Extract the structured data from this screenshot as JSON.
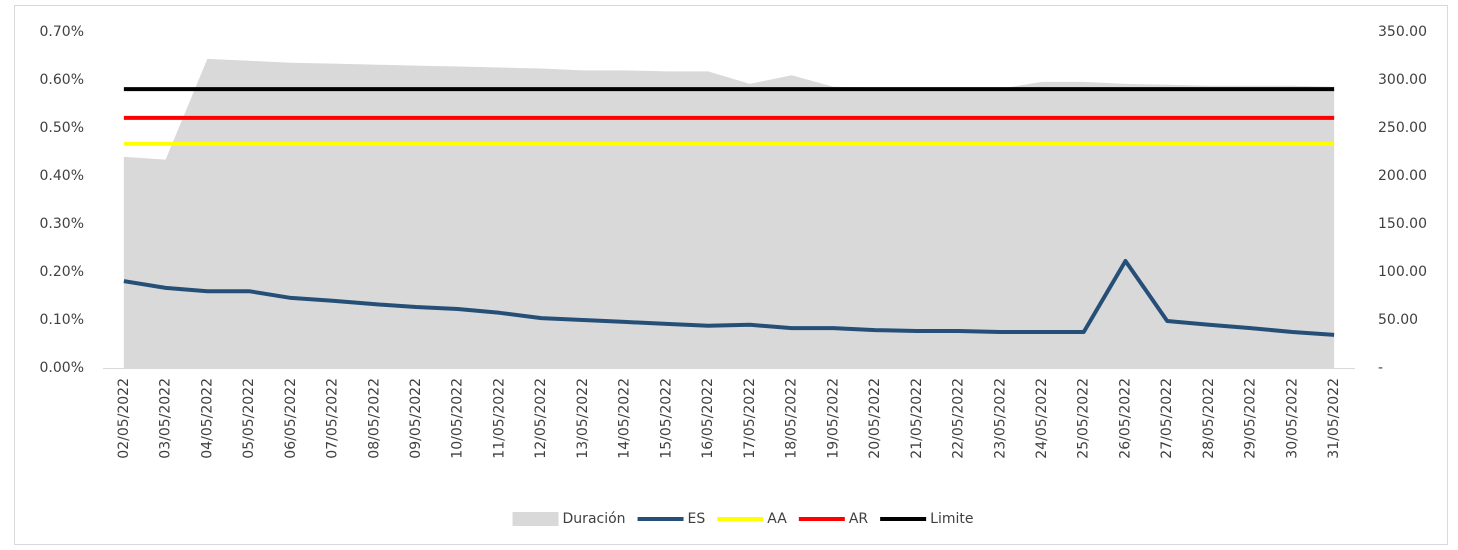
{
  "chart_data": {
    "type": "line",
    "categories": [
      "02/05/2022",
      "03/05/2022",
      "04/05/2022",
      "05/05/2022",
      "06/05/2022",
      "07/05/2022",
      "08/05/2022",
      "09/05/2022",
      "10/05/2022",
      "11/05/2022",
      "12/05/2022",
      "13/05/2022",
      "14/05/2022",
      "15/05/2022",
      "16/05/2022",
      "17/05/2022",
      "18/05/2022",
      "19/05/2022",
      "20/05/2022",
      "21/05/2022",
      "22/05/2022",
      "23/05/2022",
      "24/05/2022",
      "25/05/2022",
      "26/05/2022",
      "27/05/2022",
      "28/05/2022",
      "29/05/2022",
      "30/05/2022",
      "31/05/2022"
    ],
    "series": [
      {
        "name": "Duración",
        "color": "#d9d9d9",
        "kind": "area",
        "axis": "y2",
        "values": [
          220,
          217,
          322,
          320,
          318,
          317,
          316,
          315,
          314,
          313,
          312,
          310,
          310,
          309,
          309,
          296,
          305,
          293,
          292,
          291,
          291,
          291,
          298,
          298,
          296,
          295,
          294,
          294,
          294,
          293
        ]
      },
      {
        "name": "ES",
        "color": "#264f78",
        "values": [
          0.181,
          0.167,
          0.16,
          0.16,
          0.146,
          0.14,
          0.133,
          0.127,
          0.123,
          0.115,
          0.104,
          0.1,
          0.096,
          0.092,
          0.088,
          0.09,
          0.083,
          0.083,
          0.079,
          0.077,
          0.077,
          0.075,
          0.075,
          0.075,
          0.223,
          0.098,
          0.09,
          0.083,
          0.075,
          0.069
        ]
      },
      {
        "name": "AA",
        "color": "#ffff00",
        "values": [
          0.467,
          0.467,
          0.467,
          0.467,
          0.467,
          0.467,
          0.467,
          0.467,
          0.467,
          0.467,
          0.467,
          0.467,
          0.467,
          0.467,
          0.467,
          0.467,
          0.467,
          0.467,
          0.467,
          0.467,
          0.467,
          0.467,
          0.467,
          0.467,
          0.467,
          0.467,
          0.467,
          0.467,
          0.467,
          0.467
        ]
      },
      {
        "name": "AR",
        "color": "#ff0000",
        "values": [
          0.521,
          0.521,
          0.521,
          0.521,
          0.521,
          0.521,
          0.521,
          0.521,
          0.521,
          0.521,
          0.521,
          0.521,
          0.521,
          0.521,
          0.521,
          0.521,
          0.521,
          0.521,
          0.521,
          0.521,
          0.521,
          0.521,
          0.521,
          0.521,
          0.521,
          0.521,
          0.521,
          0.521,
          0.521,
          0.521
        ]
      },
      {
        "name": "Limite",
        "color": "#000000",
        "values": [
          0.581,
          0.581,
          0.581,
          0.581,
          0.581,
          0.581,
          0.581,
          0.581,
          0.581,
          0.581,
          0.581,
          0.581,
          0.581,
          0.581,
          0.581,
          0.581,
          0.581,
          0.581,
          0.581,
          0.581,
          0.581,
          0.581,
          0.581,
          0.581,
          0.581,
          0.581,
          0.581,
          0.581,
          0.581,
          0.581
        ]
      }
    ],
    "ylim": [
      0,
      0.7
    ],
    "yticks": [
      {
        "value": 0,
        "label": "0.00%"
      },
      {
        "value": 0.1,
        "label": "0.10%"
      },
      {
        "value": 0.2,
        "label": "0.20%"
      },
      {
        "value": 0.3,
        "label": "0.30%"
      },
      {
        "value": 0.4,
        "label": "0.40%"
      },
      {
        "value": 0.5,
        "label": "0.50%"
      },
      {
        "value": 0.6,
        "label": "0.60%"
      },
      {
        "value": 0.7,
        "label": "0.70%"
      }
    ],
    "y2lim": [
      0,
      350
    ],
    "y2ticks": [
      {
        "value": 0,
        "label": "-"
      },
      {
        "value": 50,
        "label": "50.00"
      },
      {
        "value": 100,
        "label": "100.00"
      },
      {
        "value": 150,
        "label": "150.00"
      },
      {
        "value": 200,
        "label": "200.00"
      },
      {
        "value": 250,
        "label": "250.00"
      },
      {
        "value": 300,
        "label": "300.00"
      },
      {
        "value": 350,
        "label": "350.00"
      }
    ],
    "legend": "bottom"
  }
}
